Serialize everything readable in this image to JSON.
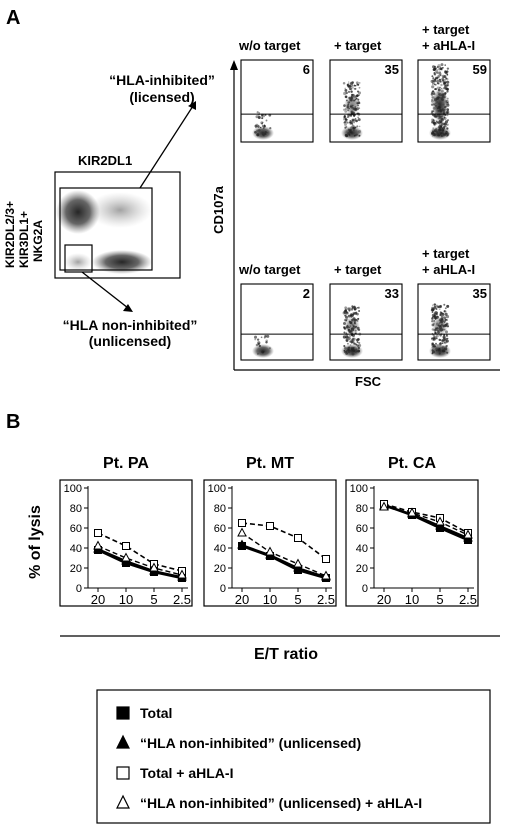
{
  "panel_a": {
    "label": "A",
    "gate_plot": {
      "x_label": "KIR2DL1",
      "y_label_lines": [
        "KIR2DL2/3+",
        "KIR3DL1+",
        "NKG2A"
      ],
      "inhibited_gate_lines": [
        "“HLA-inhibited”",
        "(licensed)"
      ],
      "noninhibited_gate_lines": [
        "“HLA non-inhibited”",
        "(unlicensed)"
      ]
    },
    "y_axis_label": "CD107a",
    "x_axis_label": "FSC",
    "rows": [
      {
        "name": "licensed",
        "panels": [
          {
            "title_lines": [
              "w/o target"
            ],
            "value": "6",
            "percent": 6
          },
          {
            "title_lines": [
              "+ target"
            ],
            "value": "35",
            "percent": 35
          },
          {
            "title_lines": [
              "+ target",
              "+ aHLA-I"
            ],
            "value": "59",
            "percent": 59
          }
        ]
      },
      {
        "name": "unlicensed",
        "panels": [
          {
            "title_lines": [
              "w/o target"
            ],
            "value": "2",
            "percent": 2
          },
          {
            "title_lines": [
              "+ target"
            ],
            "value": "33",
            "percent": 33
          },
          {
            "title_lines": [
              "+ target",
              "+ aHLA-I"
            ],
            "value": "35",
            "percent": 35
          }
        ]
      }
    ]
  },
  "panel_b": {
    "label": "B",
    "x_label": "E/T ratio"
  },
  "chart_data": [
    {
      "type": "line",
      "title": "Pt. PA",
      "ylabel": "% of lysis",
      "categories": [
        "20",
        "10",
        "5",
        "2.5"
      ],
      "yticks": [
        "0",
        "20",
        "40",
        "60",
        "80",
        "100"
      ],
      "ylim": [
        0,
        100
      ],
      "series": [
        {
          "name": "Total",
          "values": [
            38,
            25,
            16,
            10
          ]
        },
        {
          "name": "“HLA non-inhibited” (unlicensed)",
          "values": [
            39,
            27,
            17,
            11
          ]
        },
        {
          "name": "Total + aHLA-I",
          "values": [
            55,
            42,
            24,
            17
          ]
        },
        {
          "name": "“HLA non-inhibited” (unlicensed) + aHLA-I",
          "values": [
            42,
            30,
            20,
            13
          ]
        }
      ]
    },
    {
      "type": "line",
      "title": "Pt. MT",
      "ylabel": "",
      "categories": [
        "20",
        "10",
        "5",
        "2.5"
      ],
      "yticks": [
        "0",
        "20",
        "40",
        "60",
        "80",
        "100"
      ],
      "ylim": [
        0,
        100
      ],
      "series": [
        {
          "name": "Total",
          "values": [
            42,
            32,
            18,
            10
          ]
        },
        {
          "name": "“HLA non-inhibited” (unlicensed)",
          "values": [
            43,
            33,
            20,
            11
          ]
        },
        {
          "name": "Total + aHLA-I",
          "values": [
            65,
            62,
            50,
            29
          ]
        },
        {
          "name": "“HLA non-inhibited” (unlicensed) + aHLA-I",
          "values": [
            55,
            36,
            24,
            12
          ]
        }
      ]
    },
    {
      "type": "line",
      "title": "Pt. CA",
      "ylabel": "",
      "categories": [
        "20",
        "10",
        "5",
        "2.5"
      ],
      "yticks": [
        "0",
        "20",
        "40",
        "60",
        "80",
        "100"
      ],
      "ylim": [
        0,
        100
      ],
      "series": [
        {
          "name": "Total",
          "values": [
            83,
            73,
            60,
            48
          ]
        },
        {
          "name": "“HLA non-inhibited” (unlicensed)",
          "values": [
            82,
            74,
            62,
            50
          ]
        },
        {
          "name": "Total + aHLA-I",
          "values": [
            84,
            76,
            70,
            55
          ]
        },
        {
          "name": "“HLA non-inhibited” (unlicensed) + aHLA-I",
          "values": [
            81,
            75,
            66,
            53
          ]
        }
      ]
    }
  ],
  "legend": {
    "items": [
      {
        "marker": "filled-square",
        "label": "Total"
      },
      {
        "marker": "filled-triangle",
        "label": "“HLA non-inhibited” (unlicensed)"
      },
      {
        "marker": "open-square",
        "label": "Total + aHLA-I"
      },
      {
        "marker": "open-triangle",
        "label": "“HLA non-inhibited” (unlicensed) + aHLA-I"
      }
    ]
  }
}
